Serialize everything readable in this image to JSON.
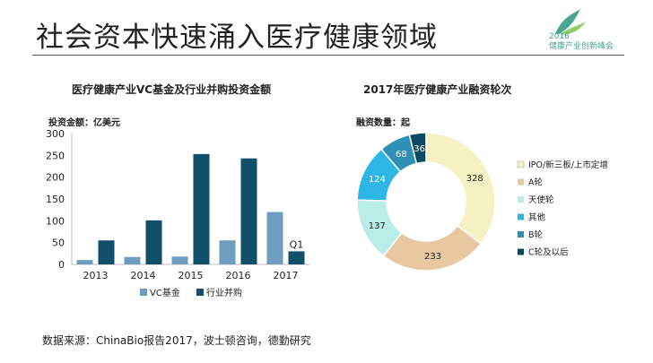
{
  "slide": {
    "title": "社会资本快速涌入医疗健康领域",
    "source": "数据来源：ChinaBio报告2017，波士顿咨询，德勤研究"
  },
  "logo": {
    "line1": "2018",
    "line2": "健康产业创新峰会"
  },
  "chart_data": [
    {
      "type": "bar",
      "title": "医疗健康产业VC基金及行业并购投资金额",
      "ylabel": "投资金额：亿美元",
      "xlabel": "",
      "categories": [
        "2013",
        "2014",
        "2015",
        "2016",
        "2017"
      ],
      "series": [
        {
          "name": "VC基金",
          "color": "#6f9dbf",
          "values": [
            10,
            17,
            18,
            55,
            120
          ]
        },
        {
          "name": "行业并购",
          "color": "#114f6a",
          "values": [
            55,
            101,
            253,
            243,
            30
          ]
        }
      ],
      "ylim": [
        0,
        300
      ],
      "yticks": [
        0,
        50,
        100,
        150,
        200,
        250,
        300
      ],
      "annotation": "Q1",
      "grid": false,
      "legend": "bottom"
    },
    {
      "type": "pie",
      "title": "2017年医疗健康产业融资轮次",
      "value_label": "融资数量：起",
      "labels": [
        "IPO/新三板/上市定增",
        "A轮",
        "天使轮",
        "其他",
        "B轮",
        "C轮及以后"
      ],
      "values": [
        328,
        233,
        137,
        124,
        68,
        36
      ],
      "colors": [
        "#f5f1c2",
        "#e8c8a1",
        "#b9ede8",
        "#2db7e6",
        "#2f8fb4",
        "#0c4a64"
      ],
      "legend": "right"
    }
  ]
}
